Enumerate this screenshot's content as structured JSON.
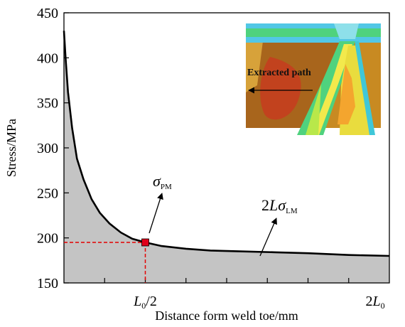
{
  "chart_data": {
    "type": "area",
    "xlabel": "Distance form weld toe/mm",
    "ylabel": "Stress/MPa",
    "x_tick_labels": [
      {
        "x": 0.5,
        "base": "L",
        "sub": "0",
        "suffix": "/2"
      },
      {
        "x": 2.0,
        "prefix": "2",
        "base": "L",
        "sub": "0",
        "suffix": ""
      }
    ],
    "xlim": [
      0,
      2.0
    ],
    "ylim": [
      150,
      450
    ],
    "y_ticks": [
      150,
      200,
      250,
      300,
      350,
      400,
      450
    ],
    "series": [
      {
        "x": [
          0.0,
          0.01,
          0.025,
          0.05,
          0.08,
          0.12,
          0.17,
          0.22,
          0.28,
          0.35,
          0.42,
          0.5,
          0.6,
          0.75,
          0.9,
          1.1,
          1.3,
          1.5,
          1.75,
          2.0
        ],
        "values": [
          430,
          400,
          362,
          322,
          288,
          265,
          243,
          228,
          216,
          206,
          199,
          195,
          191,
          188,
          186,
          185,
          184,
          183,
          181,
          180
        ]
      }
    ],
    "marked_point": {
      "x": 0.5,
      "y": 195
    },
    "annotations": {
      "sigma_pm": {
        "symbol": "σ",
        "sub": "PM"
      },
      "sigma_lm": {
        "prefix": "2",
        "italic": "L",
        "symbol": "σ",
        "sub": "LM"
      }
    },
    "inset_label": "Extracted path"
  }
}
